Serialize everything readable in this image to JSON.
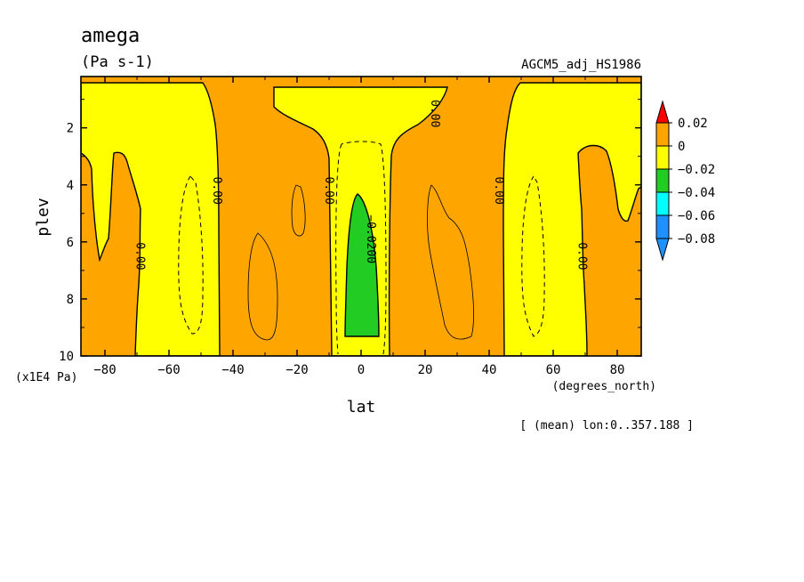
{
  "chart_data": {
    "type": "heatmap",
    "title": "amega",
    "units": "(Pa s-1)",
    "source": "AGCM5_adj_HS1986",
    "xlabel": "lat",
    "x_units": "(degrees_north)",
    "ylabel": "plev",
    "y_units": "(x1E4 Pa)",
    "subset_note": "[ (mean) lon:0..357.188 ]",
    "xlim": [
      -87.5,
      87.5
    ],
    "ylim": [
      10,
      0.2
    ],
    "x_ticks": [
      -80,
      -60,
      -40,
      -20,
      0,
      20,
      40,
      60,
      80
    ],
    "y_ticks": [
      2,
      4,
      6,
      8,
      10
    ],
    "colorbar": {
      "levels": [
        0.02,
        0,
        -0.02,
        -0.04,
        -0.06,
        -0.08
      ],
      "labels": [
        "0.02",
        "0",
        "−0.02",
        "−0.04",
        "−0.06",
        "−0.08"
      ],
      "colors": [
        "#ff0000",
        "#ffa500",
        "#ffff00",
        "#22cc22",
        "#00ffff",
        "#1e90ff"
      ]
    },
    "regions": [
      {
        "range": "0 to 0.02",
        "color": "#ffa500"
      },
      {
        "range": "-0.02 to 0",
        "color": "#ffff00"
      },
      {
        "range": "-0.04 to -0.02",
        "color": "#22cc22"
      }
    ],
    "contour_labels": [
      {
        "text": "0.00",
        "lat": -69,
        "plev": 6.5
      },
      {
        "text": "0.00",
        "lat": -45,
        "plev": 4.2
      },
      {
        "text": "0.00",
        "lat": -10,
        "plev": 4.2
      },
      {
        "text": "0.00",
        "lat": 23,
        "plev": 1.5
      },
      {
        "text": "−0.0200",
        "lat": 3,
        "plev": 5.9
      },
      {
        "text": "0.00",
        "lat": 43,
        "plev": 4.2
      },
      {
        "text": "0.00",
        "lat": 69,
        "plev": 6.5
      }
    ]
  }
}
